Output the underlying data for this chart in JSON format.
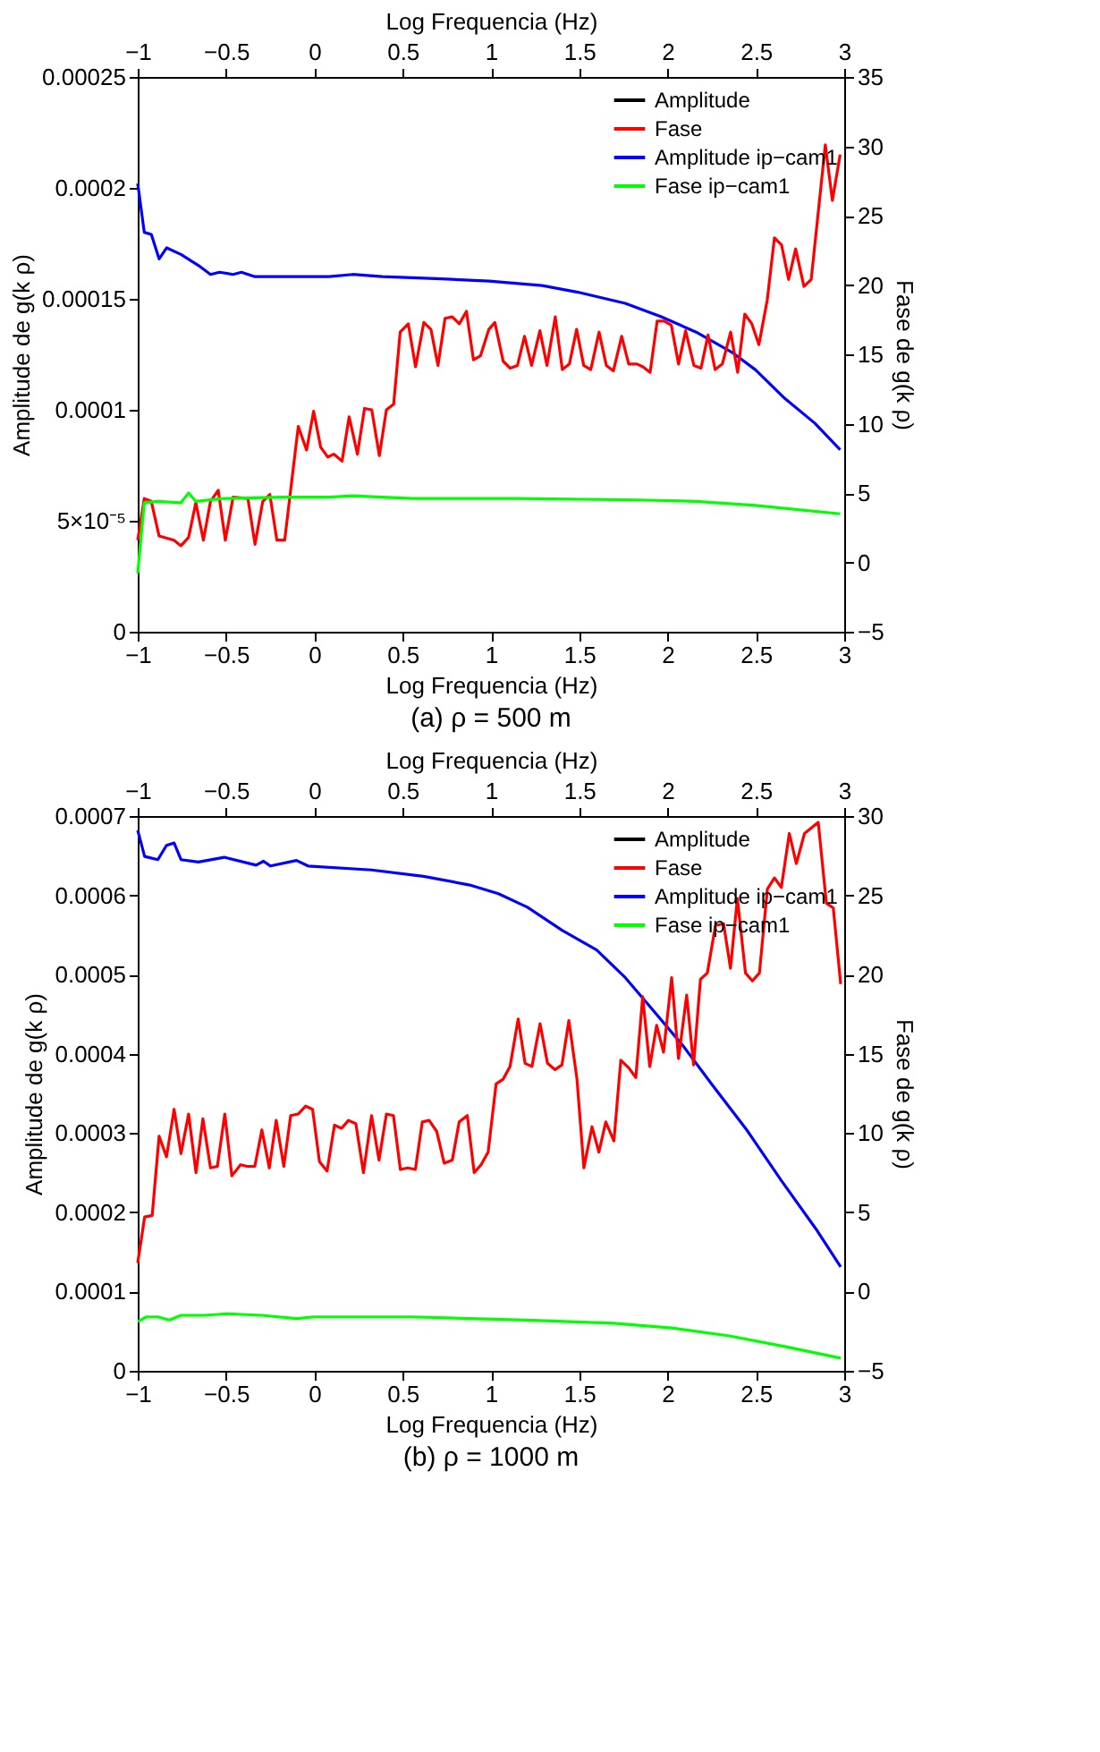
{
  "chart_data": [
    {
      "type": "line",
      "xlabel": "Log Frequencia (Hz)",
      "x2label": "Log Frequencia (Hz)",
      "ylabel": "Amplitude de g(k ρ)",
      "y2label": "Fase de g(k ρ)",
      "xlim": [
        -1,
        3
      ],
      "xticks": [
        -1,
        -0.5,
        0,
        0.5,
        1,
        1.5,
        2,
        2.5,
        3
      ],
      "x2lim": [
        -1,
        3
      ],
      "x2ticks": [
        -1,
        -0.5,
        0,
        0.5,
        1,
        1.5,
        2,
        2.5,
        3
      ],
      "ylim": [
        0,
        0.00025
      ],
      "yticks": [
        0,
        {
          "value": 5e-05,
          "label": "5×10⁻⁵"
        },
        0.0001,
        0.00015,
        0.0002,
        0.00025
      ],
      "y2lim": [
        -5,
        35
      ],
      "y2ticks": [
        -5,
        0,
        5,
        10,
        15,
        20,
        25,
        30,
        35
      ],
      "legend": "top right",
      "annotations": [
        "(a) ρ = 500 m"
      ],
      "series": [
        {
          "name": "Amplitude",
          "color": "#000000"
        },
        {
          "name": "Fase",
          "color": "#ff0000",
          "axis": "y2",
          "x": [
            -1,
            -0.963,
            -0.923,
            -0.879,
            -0.795,
            -0.755,
            -0.712,
            -0.671,
            -0.628,
            -0.588,
            -0.544,
            -0.504,
            -0.46,
            -0.376,
            -0.336,
            -0.292,
            -0.252,
            -0.212,
            -0.168,
            -0.091,
            -0.044,
            -0.004,
            0.036,
            0.076,
            0.11,
            0.157,
            0.197,
            0.244,
            0.284,
            0.325,
            0.368,
            0.408,
            0.449,
            0.486,
            0.532,
            0.573,
            0.62,
            0.66,
            0.7,
            0.74,
            0.781,
            0.821,
            0.861,
            0.901,
            0.941,
            0.988,
            1.022,
            1.069,
            1.109,
            1.15,
            1.19,
            1.23,
            1.277,
            1.317,
            1.364,
            1.404,
            1.444,
            1.485,
            1.525,
            1.565,
            1.612,
            1.653,
            1.693,
            1.74,
            1.78,
            1.827,
            1.861,
            1.901,
            1.941,
            1.981,
            2.021,
            2.062,
            2.102,
            2.149,
            2.189,
            2.229,
            2.269,
            2.31,
            2.357,
            2.397,
            2.437,
            2.477,
            2.517,
            2.564,
            2.605,
            2.645,
            2.685,
            2.725,
            2.772,
            2.813,
            2.893,
            2.933,
            2.977
          ],
          "values": [
            1.6,
            4.6,
            4.4,
            1.9,
            1.6,
            1.2,
            1.8,
            4.3,
            1.6,
            4.4,
            5.2,
            1.6,
            4.7,
            4.6,
            1.3,
            4.4,
            4.9,
            1.6,
            1.6,
            9.8,
            8.1,
            10.9,
            8.3,
            7.6,
            7.8,
            7.3,
            10.5,
            7.8,
            11.1,
            11.0,
            7.7,
            11.0,
            11.4,
            16.6,
            17.2,
            14.1,
            17.3,
            16.8,
            14.2,
            17.6,
            17.7,
            17.2,
            18.1,
            14.6,
            14.9,
            16.8,
            17.3,
            14.5,
            14.0,
            14.2,
            16.3,
            14.2,
            16.7,
            14.2,
            17.7,
            13.9,
            14.3,
            16.8,
            14.2,
            13.9,
            16.6,
            14.2,
            13.8,
            16.3,
            14.3,
            14.3,
            14.1,
            13.7,
            17.4,
            17.4,
            17.1,
            14.3,
            16.7,
            14.2,
            14.0,
            16.4,
            13.9,
            14.3,
            16.6,
            13.7,
            17.9,
            17.2,
            15.7,
            18.9,
            23.4,
            22.9,
            20.4,
            22.6,
            19.9,
            20.4,
            30.1,
            26.1,
            29.4
          ]
        },
        {
          "name": "Amplitude ip−cam1",
          "color": "#0000ff",
          "axis": "y",
          "x": [
            -1,
            -0.963,
            -0.923,
            -0.879,
            -0.836,
            -0.755,
            -0.655,
            -0.588,
            -0.537,
            -0.46,
            -0.413,
            -0.336,
            0.083,
            0.217,
            0.385,
            0.72,
            0.989,
            1.29,
            1.492,
            1.76,
            1.961,
            2.162,
            2.363,
            2.498,
            2.665,
            2.833,
            2.977
          ],
          "values": [
            0.000202,
            0.00018,
            0.000179,
            0.000168,
            0.000173,
            0.00017,
            0.000165,
            0.000161,
            0.000162,
            0.000161,
            0.000162,
            0.00016,
            0.00016,
            0.000161,
            0.00016,
            0.000159,
            0.000158,
            0.000156,
            0.000153,
            0.000148,
            0.000142,
            0.000135,
            0.000126,
            0.000118,
            0.000105,
            9.4e-05,
            8.2e-05
          ]
        },
        {
          "name": "Fase ip−cam1",
          "color": "#00ff00",
          "axis": "y2",
          "x": [
            -1,
            -0.963,
            -0.889,
            -0.755,
            -0.712,
            -0.671,
            -0.52,
            -0.185,
            0.083,
            0.217,
            0.553,
            1.157,
            1.828,
            2.162,
            2.498,
            2.977
          ],
          "values": [
            -0.8,
            4.3,
            4.4,
            4.3,
            5.0,
            4.4,
            4.6,
            4.7,
            4.7,
            4.8,
            4.6,
            4.6,
            4.5,
            4.4,
            4.1,
            3.5
          ]
        }
      ]
    },
    {
      "type": "line",
      "xlabel": "Log Frequencia (Hz)",
      "x2label": "Log Frequencia (Hz)",
      "ylabel": "Amplitude de g(k ρ)",
      "y2label": "Fase de g(k ρ)",
      "xlim": [
        -1,
        3
      ],
      "xticks": [
        -1,
        -0.5,
        0,
        0.5,
        1,
        1.5,
        2,
        2.5,
        3
      ],
      "x2lim": [
        -1,
        3
      ],
      "x2ticks": [
        -1,
        -0.5,
        0,
        0.5,
        1,
        1.5,
        2,
        2.5,
        3
      ],
      "ylim": [
        0,
        0.0007
      ],
      "yticks": [
        0,
        0.0001,
        0.0002,
        0.0003,
        0.0004,
        0.0005,
        0.0006,
        0.0007
      ],
      "y2lim": [
        -5,
        30
      ],
      "y2ticks": [
        -5,
        0,
        5,
        10,
        15,
        20,
        25,
        30
      ],
      "legend": "top right",
      "annotations": [
        "(b) ρ = 1000 m"
      ],
      "series": [
        {
          "name": "Amplitude",
          "color": "#000000"
        },
        {
          "name": "Fase",
          "color": "#ff0000",
          "axis": "y2",
          "x": [
            -1,
            -0.961,
            -0.918,
            -0.879,
            -0.837,
            -0.794,
            -0.755,
            -0.712,
            -0.67,
            -0.631,
            -0.588,
            -0.549,
            -0.507,
            -0.467,
            -0.418,
            -0.379,
            -0.337,
            -0.297,
            -0.255,
            -0.216,
            -0.173,
            -0.134,
            -0.092,
            -0.049,
            -0.01,
            0.029,
            0.072,
            0.114,
            0.154,
            0.193,
            0.235,
            0.278,
            0.324,
            0.366,
            0.408,
            0.448,
            0.487,
            0.529,
            0.572,
            0.611,
            0.65,
            0.693,
            0.735,
            0.781,
            0.82,
            0.866,
            0.905,
            0.944,
            0.984,
            1.029,
            1.069,
            1.108,
            1.154,
            1.193,
            1.232,
            1.278,
            1.32,
            1.363,
            1.402,
            1.441,
            1.487,
            1.526,
            1.572,
            1.611,
            1.65,
            1.696,
            1.735,
            1.781,
            1.82,
            1.859,
            1.899,
            1.938,
            1.977,
            2.023,
            2.062,
            2.108,
            2.147,
            2.186,
            2.225,
            2.271,
            2.317,
            2.356,
            2.395,
            2.441,
            2.48,
            2.52,
            2.565,
            2.605,
            2.644,
            2.689,
            2.729,
            2.775,
            2.853,
            2.899,
            2.938,
            2.98
          ],
          "values": [
            1.8,
            4.7,
            4.8,
            9.8,
            8.5,
            11.5,
            8.7,
            11.2,
            7.5,
            10.9,
            7.8,
            7.9,
            11.2,
            7.3,
            8.0,
            7.9,
            7.9,
            10.2,
            7.8,
            10.8,
            7.9,
            11.1,
            11.2,
            11.7,
            11.5,
            8.2,
            7.6,
            10.5,
            10.3,
            10.8,
            10.6,
            7.5,
            11.1,
            8.3,
            11.2,
            11.1,
            7.7,
            7.8,
            7.7,
            10.7,
            10.8,
            10.1,
            8.1,
            8.3,
            10.7,
            11.1,
            7.5,
            8.0,
            8.8,
            13.1,
            13.4,
            14.2,
            17.2,
            14.4,
            14.2,
            16.9,
            14.4,
            14.0,
            14.3,
            17.1,
            13.4,
            7.8,
            10.4,
            8.8,
            10.7,
            9.5,
            14.6,
            14.1,
            13.5,
            18.6,
            14.2,
            16.8,
            15.1,
            19.8,
            14.7,
            18.7,
            14.3,
            19.7,
            20.1,
            23.1,
            23.2,
            20.4,
            24.8,
            20.1,
            19.6,
            20.1,
            25.4,
            26.1,
            25.5,
            28.9,
            27.0,
            28.9,
            29.6,
            24.5,
            24.2,
            19.4
          ]
        },
        {
          "name": "Amplitude ip−cam1",
          "color": "#0000ff",
          "axis": "y",
          "x": [
            -1,
            -0.961,
            -0.886,
            -0.837,
            -0.794,
            -0.755,
            -0.657,
            -0.51,
            -0.33,
            -0.288,
            -0.248,
            -0.101,
            -0.036,
            0.324,
            0.618,
            0.879,
            1.042,
            1.206,
            1.402,
            1.598,
            1.761,
            1.925,
            2.088,
            2.252,
            2.448,
            2.644,
            2.84,
            2.98
          ],
          "values": [
            0.000682,
            0.000649,
            0.000645,
            0.000663,
            0.000666,
            0.000645,
            0.000642,
            0.000648,
            0.000638,
            0.000643,
            0.000637,
            0.000644,
            0.000637,
            0.000632,
            0.000624,
            0.000613,
            0.000602,
            0.000585,
            0.000556,
            0.000531,
            0.000496,
            0.000453,
            0.00041,
            0.000361,
            0.000304,
            0.00024,
            0.000179,
            0.000131
          ]
        },
        {
          "name": "Fase ip−cam1",
          "color": "#00ff00",
          "axis": "y2",
          "x": [
            -1,
            -0.951,
            -0.886,
            -0.82,
            -0.755,
            -0.624,
            -0.493,
            -0.297,
            -0.101,
            -0.003,
            0.552,
            1.206,
            1.696,
            2.023,
            2.35,
            2.676,
            2.98
          ],
          "values": [
            -1.9,
            -1.6,
            -1.6,
            -1.8,
            -1.5,
            -1.5,
            -1.4,
            -1.5,
            -1.7,
            -1.6,
            -1.6,
            -1.8,
            -2.0,
            -2.3,
            -2.8,
            -3.5,
            -4.2
          ]
        }
      ]
    }
  ]
}
